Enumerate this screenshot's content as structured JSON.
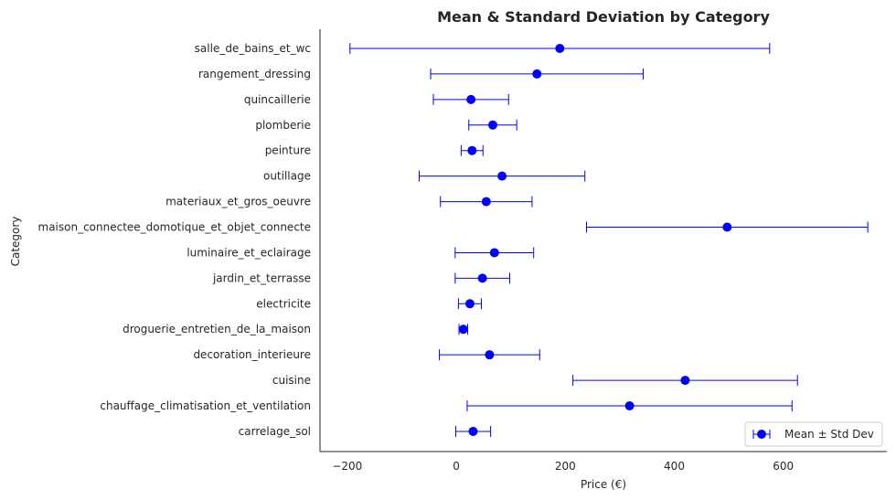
{
  "chart_data": {
    "type": "errorbar",
    "title": "Mean & Standard Deviation by Category",
    "xlabel": "Price (€)",
    "ylabel": "Category",
    "xlim": [
      -250,
      790
    ],
    "xticks": [
      -200,
      0,
      200,
      400,
      600
    ],
    "grid": false,
    "legend": {
      "label": "Mean ± Std Dev",
      "position": "lower-right"
    },
    "color": "#0000ff",
    "categories": [
      "salle_de_bains_et_wc",
      "rangement_dressing",
      "quincaillerie",
      "plomberie",
      "peinture",
      "outillage",
      "materiaux_et_gros_oeuvre",
      "maison_connectee_domotique_et_objet_connecte",
      "luminaire_et_eclairage",
      "jardin_et_terrasse",
      "electricite",
      "droguerie_entretien_de_la_maison",
      "decoration_interieure",
      "cuisine",
      "chauffage_climatisation_et_ventilation",
      "carrelage_sol"
    ],
    "means": [
      190,
      148,
      27,
      67,
      29,
      84,
      55,
      497,
      70,
      48,
      25,
      13,
      61,
      420,
      318,
      31
    ],
    "std": [
      385,
      195,
      69,
      44,
      20,
      152,
      84,
      258,
      72,
      50,
      21,
      8,
      92,
      206,
      298,
      32
    ]
  }
}
